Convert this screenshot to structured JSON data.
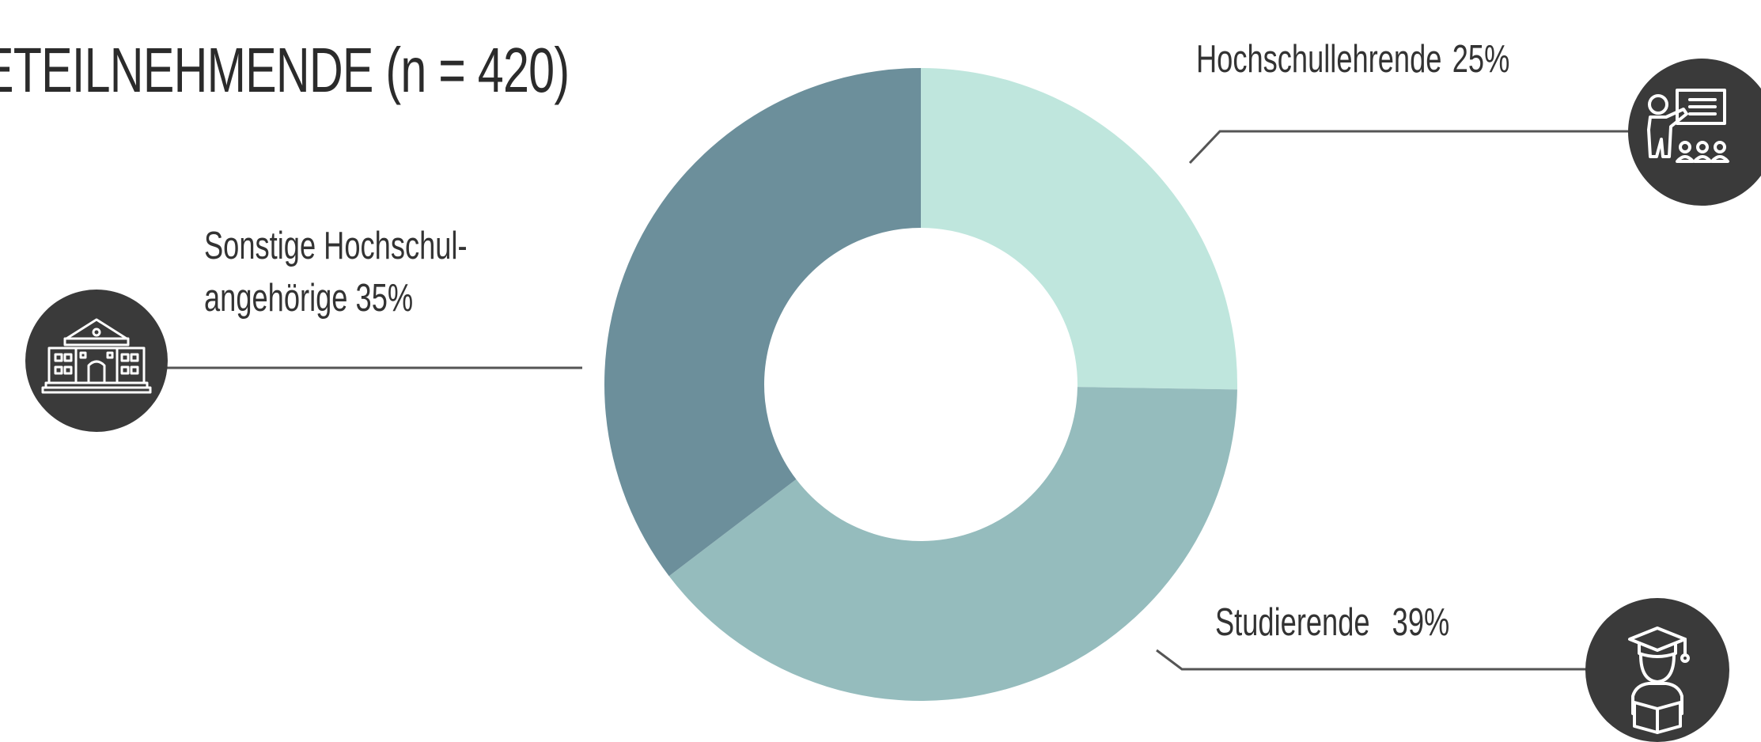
{
  "title": "ETEILNEHMENDE (n = 420)",
  "chart_data": {
    "type": "pie",
    "title": "ETEILNEHMENDE (n = 420)",
    "n": 420,
    "slices": [
      {
        "label": "Hochschullehrende",
        "value": 25,
        "color": "#bfe6dd"
      },
      {
        "label": "Studierende",
        "value": 39,
        "color": "#95bcbd"
      },
      {
        "label": "Sonstige Hochschul-angehörige",
        "value": 35,
        "color": "#6c8f9b"
      }
    ],
    "hole": "donut",
    "legend": "none",
    "grid": false
  },
  "labels": {
    "teachers": {
      "name": "Hochschullehrende",
      "pct": "25%"
    },
    "other": {
      "name_line1": "Sonstige Hochschul-",
      "name_line2": "angehörige 35%"
    },
    "students": {
      "name": "Studierende",
      "pct": "39%"
    }
  },
  "icons": {
    "teacher": "teacher-presentation-icon",
    "building": "university-building-icon",
    "student": "graduate-student-icon"
  },
  "colors": {
    "badge": "#3a3a3a",
    "leader_line": "#555555",
    "text": "#333333"
  }
}
